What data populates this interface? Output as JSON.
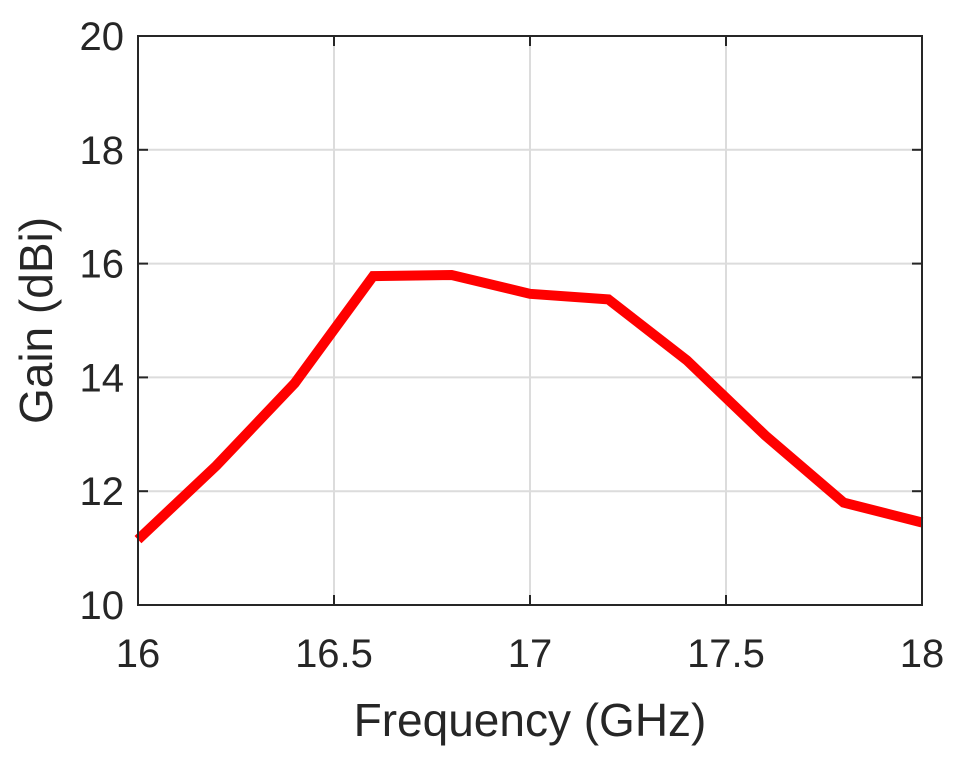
{
  "chart_data": {
    "type": "line",
    "title": "",
    "xlabel": "Frequency (GHz)",
    "ylabel": "Gain (dBi)",
    "xlim": [
      16,
      18
    ],
    "ylim": [
      10,
      20
    ],
    "xticks": [
      16,
      16.5,
      17,
      17.5,
      18
    ],
    "yticks": [
      10,
      12,
      14,
      16,
      18,
      20
    ],
    "xtick_labels": [
      "16",
      "16.5",
      "17",
      "17.5",
      "18"
    ],
    "ytick_labels": [
      "10",
      "12",
      "14",
      "16",
      "18",
      "20"
    ],
    "grid": true,
    "legend": "none",
    "series": [
      {
        "color": "#ff0000",
        "x": [
          16.0,
          16.2,
          16.4,
          16.6,
          16.8,
          17.0,
          17.2,
          17.4,
          17.6,
          17.8,
          18.0
        ],
        "y": [
          11.15,
          12.45,
          13.9,
          15.78,
          15.8,
          15.47,
          15.37,
          14.3,
          12.98,
          11.8,
          11.45
        ]
      }
    ]
  }
}
